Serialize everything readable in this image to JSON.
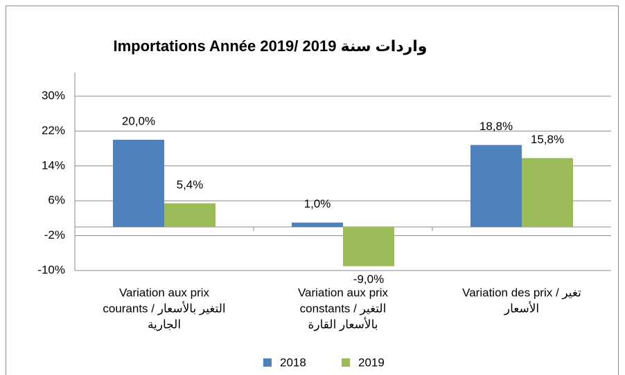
{
  "chart_data": {
    "type": "bar",
    "title": "Importations Année 2019/  واردات سنة 2019",
    "categories": [
      [
        "Variation aux prix",
        "التغير بالأسعار / courants",
        "الجارية"
      ],
      [
        "Variation aux prix",
        "التغير / constants",
        "بالأسعار القارة"
      ],
      [
        "Variation des prix / تغير",
        "الأسعار"
      ]
    ],
    "series": [
      {
        "name": "2018",
        "color": "#4f81bd",
        "values": [
          20.0,
          1.0,
          18.8
        ],
        "value_labels": [
          "20,0%",
          "1,0%",
          "18,8%"
        ]
      },
      {
        "name": "2019",
        "color": "#9bbb59",
        "values": [
          5.4,
          -9.0,
          15.8
        ],
        "value_labels": [
          "5,4%",
          "-9,0%",
          "15,8%"
        ]
      }
    ],
    "ylim": [
      -10,
      30
    ],
    "yticks": [
      {
        "value": -10,
        "label": "-10%"
      },
      {
        "value": -2,
        "label": "-2%"
      },
      {
        "value": 6,
        "label": "6%"
      },
      {
        "value": 14,
        "label": "14%"
      },
      {
        "value": 22,
        "label": "22%"
      },
      {
        "value": 30,
        "label": "30%"
      }
    ],
    "grid": true,
    "legend": "bottom"
  }
}
